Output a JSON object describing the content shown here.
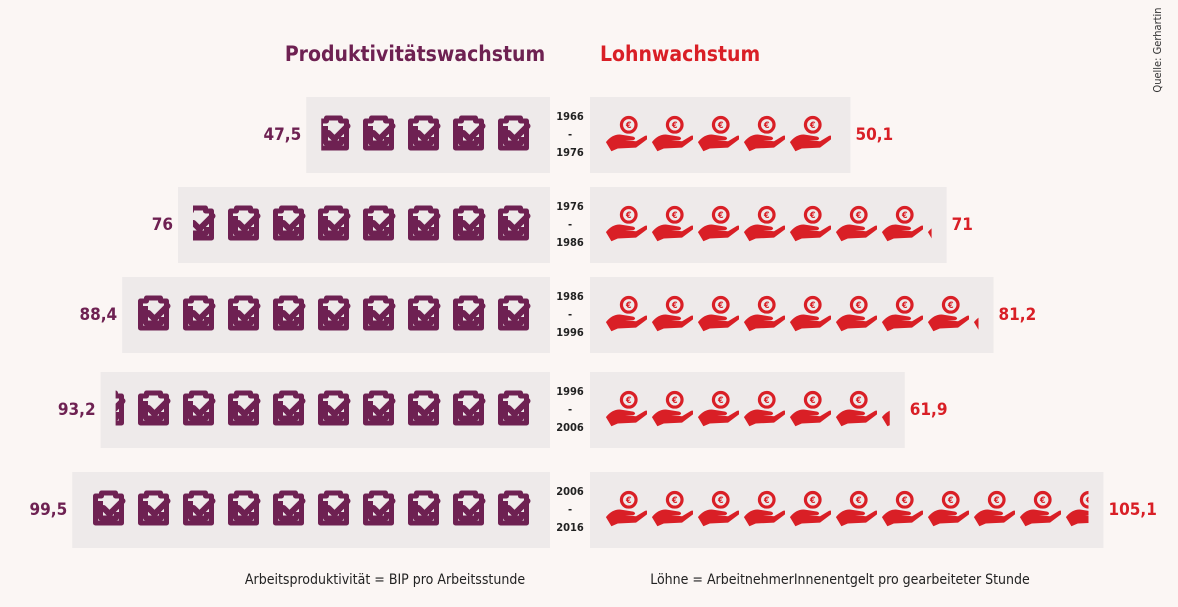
{
  "chart_data": {
    "type": "pictogram",
    "categories": [
      [
        "1966",
        "-",
        "1976"
      ],
      [
        "1976",
        "-",
        "1986"
      ],
      [
        "1986",
        "-",
        "1996"
      ],
      [
        "1996",
        "-",
        "2006"
      ],
      [
        "2006",
        "-",
        "2016"
      ]
    ],
    "series": [
      {
        "name": "Produktivitätswachstum",
        "color": "#6e2152",
        "values": [
          47.5,
          76,
          88.4,
          93.2,
          99.5
        ],
        "value_labels": [
          "47,5",
          "76",
          "88,4",
          "93,2",
          "99,5"
        ]
      },
      {
        "name": "Lohnwachstum",
        "color": "#d91f26",
        "values": [
          50.1,
          71,
          81.2,
          61.9,
          105.1
        ],
        "value_labels": [
          "50,1",
          "71",
          "81,2",
          "61,9",
          "105,1"
        ]
      }
    ],
    "notes": [
      "Arbeitsproduktivität = BIP pro Arbeitsstunde",
      "Löhne = ArbeitnehmerInnenentgelt pro gearbeiteter Stunde"
    ],
    "source": "Quelle: Gerhartin"
  }
}
